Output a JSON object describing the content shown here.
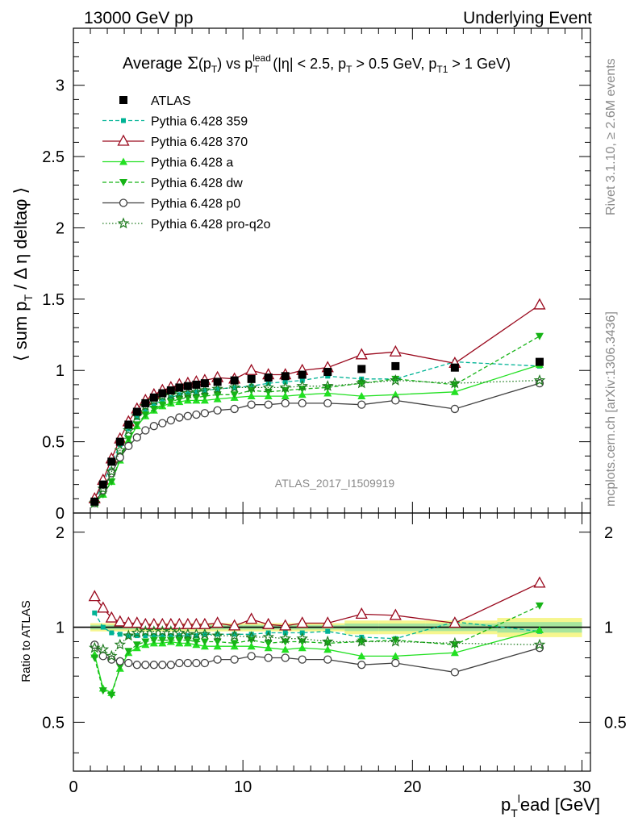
{
  "header": {
    "left": "13000 GeV pp",
    "right": "Underlying Event"
  },
  "side_labels": {
    "rivet": "Rivet 3.1.10, ≥ 2.6M events",
    "mcplots": "mcplots.cern.ch [arXiv:1306.3436]"
  },
  "analysis_id": "ATLAS_2017_I1509919",
  "chart_data": [
    {
      "type": "scatter",
      "title_parts": {
        "lead": "Average ",
        "sigma": "Σ",
        "pt_open": "(p",
        "pt_sub": "T",
        "pt_close": ")",
        "vs": " vs p",
        "lead_sup": "lead",
        "lead_sub": "T",
        "cuts_1": " (|η| < 2.5, p",
        "cuts_sub1": "T",
        "cuts_2": " > 0.5 GeV, p",
        "cuts_sub2": "T1",
        "cuts_3": " > 1 GeV)"
      },
      "ylabel_parts": {
        "a": "⟨ sum p",
        "sub": "T",
        "b": " / Δ η deltaφ ⟩"
      },
      "xlim": [
        0,
        30.5
      ],
      "ylim": [
        0,
        3.4
      ],
      "yticks": [
        "0",
        "0.5",
        "1",
        "1.5",
        "2",
        "2.5",
        "3"
      ],
      "legend_position": "top-left",
      "series": [
        {
          "name": "ATLAS",
          "color": "#000000",
          "style": "data",
          "x": [
            1.25,
            1.75,
            2.25,
            2.75,
            3.25,
            3.75,
            4.25,
            4.75,
            5.25,
            5.75,
            6.25,
            6.75,
            7.25,
            7.75,
            8.5,
            9.5,
            10.5,
            11.5,
            12.5,
            13.5,
            15.0,
            17.0,
            19.0,
            22.5,
            27.5
          ],
          "y": [
            0.08,
            0.2,
            0.36,
            0.5,
            0.62,
            0.71,
            0.77,
            0.81,
            0.84,
            0.86,
            0.88,
            0.89,
            0.9,
            0.91,
            0.92,
            0.93,
            0.94,
            0.95,
            0.96,
            0.97,
            0.99,
            1.01,
            1.03,
            1.02,
            1.06
          ]
        },
        {
          "name": "Pythia 6.428 359",
          "color": "#00b395",
          "style": "dashed",
          "marker": "square",
          "x": [
            1.25,
            1.75,
            2.25,
            2.75,
            3.25,
            3.75,
            4.25,
            4.75,
            5.25,
            5.75,
            6.25,
            6.75,
            7.25,
            7.75,
            8.5,
            9.5,
            10.5,
            11.5,
            12.5,
            13.5,
            15.0,
            17.0,
            19.0,
            22.5,
            27.5
          ],
          "y": [
            0.09,
            0.2,
            0.35,
            0.48,
            0.59,
            0.67,
            0.72,
            0.76,
            0.79,
            0.81,
            0.83,
            0.84,
            0.85,
            0.86,
            0.87,
            0.88,
            0.89,
            0.91,
            0.92,
            0.93,
            0.96,
            0.94,
            0.94,
            1.06,
            1.03
          ]
        },
        {
          "name": "Pythia 6.428 370",
          "color": "#9a0a1e",
          "style": "solid",
          "marker": "open-triangle",
          "x": [
            1.25,
            1.75,
            2.25,
            2.75,
            3.25,
            3.75,
            4.25,
            4.75,
            5.25,
            5.75,
            6.25,
            6.75,
            7.25,
            7.75,
            8.5,
            9.5,
            10.5,
            11.5,
            12.5,
            13.5,
            15.0,
            17.0,
            19.0,
            22.5,
            27.5
          ],
          "y": [
            0.1,
            0.23,
            0.38,
            0.52,
            0.64,
            0.73,
            0.79,
            0.83,
            0.86,
            0.88,
            0.9,
            0.91,
            0.92,
            0.93,
            0.95,
            0.94,
            1.0,
            0.97,
            0.97,
            1.0,
            1.02,
            1.11,
            1.13,
            1.05,
            1.46
          ]
        },
        {
          "name": "Pythia 6.428 a",
          "color": "#22e022",
          "style": "solid",
          "marker": "triangle",
          "x": [
            1.25,
            1.75,
            2.25,
            2.75,
            3.25,
            3.75,
            4.25,
            4.75,
            5.25,
            5.75,
            6.25,
            6.75,
            7.25,
            7.75,
            8.5,
            9.5,
            10.5,
            11.5,
            12.5,
            13.5,
            15.0,
            17.0,
            19.0,
            22.5,
            27.5
          ],
          "y": [
            0.07,
            0.13,
            0.22,
            0.37,
            0.51,
            0.61,
            0.68,
            0.72,
            0.75,
            0.77,
            0.78,
            0.79,
            0.79,
            0.79,
            0.8,
            0.81,
            0.82,
            0.82,
            0.82,
            0.83,
            0.84,
            0.82,
            0.83,
            0.85,
            1.04
          ]
        },
        {
          "name": "Pythia 6.428 dw",
          "color": "#16b316",
          "style": "dashed",
          "marker": "inverted-triangle",
          "x": [
            1.25,
            1.75,
            2.25,
            2.75,
            3.25,
            3.75,
            4.25,
            4.75,
            5.25,
            5.75,
            6.25,
            6.75,
            7.25,
            7.75,
            8.5,
            9.5,
            10.5,
            11.5,
            12.5,
            13.5,
            15.0,
            17.0,
            19.0,
            22.5,
            27.5
          ],
          "y": [
            0.07,
            0.13,
            0.22,
            0.38,
            0.52,
            0.62,
            0.69,
            0.73,
            0.76,
            0.78,
            0.8,
            0.81,
            0.81,
            0.82,
            0.83,
            0.83,
            0.86,
            0.85,
            0.86,
            0.87,
            0.88,
            0.91,
            0.94,
            0.9,
            1.24
          ]
        },
        {
          "name": "Pythia 6.428 p0",
          "color": "#404040",
          "style": "solid",
          "marker": "open-circle",
          "x": [
            1.25,
            1.75,
            2.25,
            2.75,
            3.25,
            3.75,
            4.25,
            4.75,
            5.25,
            5.75,
            6.25,
            6.75,
            7.25,
            7.75,
            8.5,
            9.5,
            10.5,
            11.5,
            12.5,
            13.5,
            15.0,
            17.0,
            19.0,
            22.5,
            27.5
          ],
          "y": [
            0.07,
            0.16,
            0.28,
            0.39,
            0.47,
            0.53,
            0.58,
            0.61,
            0.63,
            0.65,
            0.67,
            0.68,
            0.69,
            0.7,
            0.72,
            0.73,
            0.76,
            0.76,
            0.77,
            0.77,
            0.77,
            0.76,
            0.79,
            0.73,
            0.91
          ]
        },
        {
          "name": "Pythia 6.428 pro-q2o",
          "color": "#1d7a1d",
          "style": "dotted",
          "marker": "star",
          "x": [
            1.25,
            1.75,
            2.25,
            2.75,
            3.25,
            3.75,
            4.25,
            4.75,
            5.25,
            5.75,
            6.25,
            6.75,
            7.25,
            7.75,
            8.5,
            9.5,
            10.5,
            11.5,
            12.5,
            13.5,
            15.0,
            17.0,
            19.0,
            22.5,
            27.5
          ],
          "y": [
            0.07,
            0.17,
            0.29,
            0.44,
            0.58,
            0.68,
            0.75,
            0.79,
            0.82,
            0.83,
            0.84,
            0.84,
            0.85,
            0.86,
            0.87,
            0.88,
            0.88,
            0.88,
            0.88,
            0.89,
            0.89,
            0.91,
            0.93,
            0.91,
            0.93
          ]
        }
      ]
    },
    {
      "type": "scatter",
      "ylabel": "Ratio to ATLAS",
      "xlabel_parts": {
        "a": "p",
        "sub": "T",
        "sup": "l",
        "b": "ead [GeV]"
      },
      "xlim": [
        0,
        30.5
      ],
      "ylim": [
        0.35,
        2.3
      ],
      "xticks": [
        "0",
        "10",
        "20",
        "30"
      ],
      "yticks": [
        "0.5",
        "1",
        "2"
      ],
      "ratio_series": [
        {
          "name": "Pythia 6.428 359",
          "y": [
            1.11,
            1.0,
            0.96,
            0.95,
            0.94,
            0.94,
            0.94,
            0.94,
            0.94,
            0.94,
            0.94,
            0.94,
            0.94,
            0.95,
            0.95,
            0.95,
            0.95,
            0.96,
            0.96,
            0.96,
            0.97,
            0.93,
            0.92,
            1.04,
            0.97
          ]
        },
        {
          "name": "Pythia 6.428 370",
          "y": [
            1.25,
            1.15,
            1.07,
            1.04,
            1.03,
            1.03,
            1.02,
            1.02,
            1.02,
            1.02,
            1.02,
            1.02,
            1.02,
            1.02,
            1.03,
            1.01,
            1.06,
            1.02,
            1.01,
            1.03,
            1.03,
            1.1,
            1.09,
            1.03,
            1.38
          ]
        },
        {
          "name": "Pythia 6.428 a",
          "y": [
            0.82,
            0.64,
            0.62,
            0.74,
            0.83,
            0.86,
            0.88,
            0.89,
            0.89,
            0.9,
            0.89,
            0.89,
            0.88,
            0.87,
            0.87,
            0.87,
            0.87,
            0.86,
            0.85,
            0.86,
            0.85,
            0.81,
            0.81,
            0.83,
            0.98
          ]
        },
        {
          "name": "Pythia 6.428 dw",
          "y": [
            0.8,
            0.63,
            0.61,
            0.75,
            0.84,
            0.88,
            0.9,
            0.91,
            0.91,
            0.91,
            0.91,
            0.91,
            0.9,
            0.9,
            0.9,
            0.89,
            0.91,
            0.89,
            0.9,
            0.9,
            0.89,
            0.9,
            0.91,
            0.88,
            1.17
          ]
        },
        {
          "name": "Pythia 6.428 p0",
          "y": [
            0.88,
            0.81,
            0.79,
            0.78,
            0.77,
            0.76,
            0.76,
            0.76,
            0.76,
            0.76,
            0.77,
            0.77,
            0.77,
            0.77,
            0.79,
            0.79,
            0.81,
            0.8,
            0.8,
            0.79,
            0.79,
            0.76,
            0.77,
            0.72,
            0.86
          ]
        },
        {
          "name": "Pythia 6.428 pro-q2o",
          "y": [
            0.86,
            0.85,
            0.81,
            0.88,
            0.94,
            0.96,
            0.97,
            0.97,
            0.97,
            0.97,
            0.96,
            0.95,
            0.95,
            0.95,
            0.94,
            0.94,
            0.93,
            0.93,
            0.92,
            0.92,
            0.9,
            0.9,
            0.9,
            0.89,
            0.88
          ]
        }
      ]
    }
  ]
}
